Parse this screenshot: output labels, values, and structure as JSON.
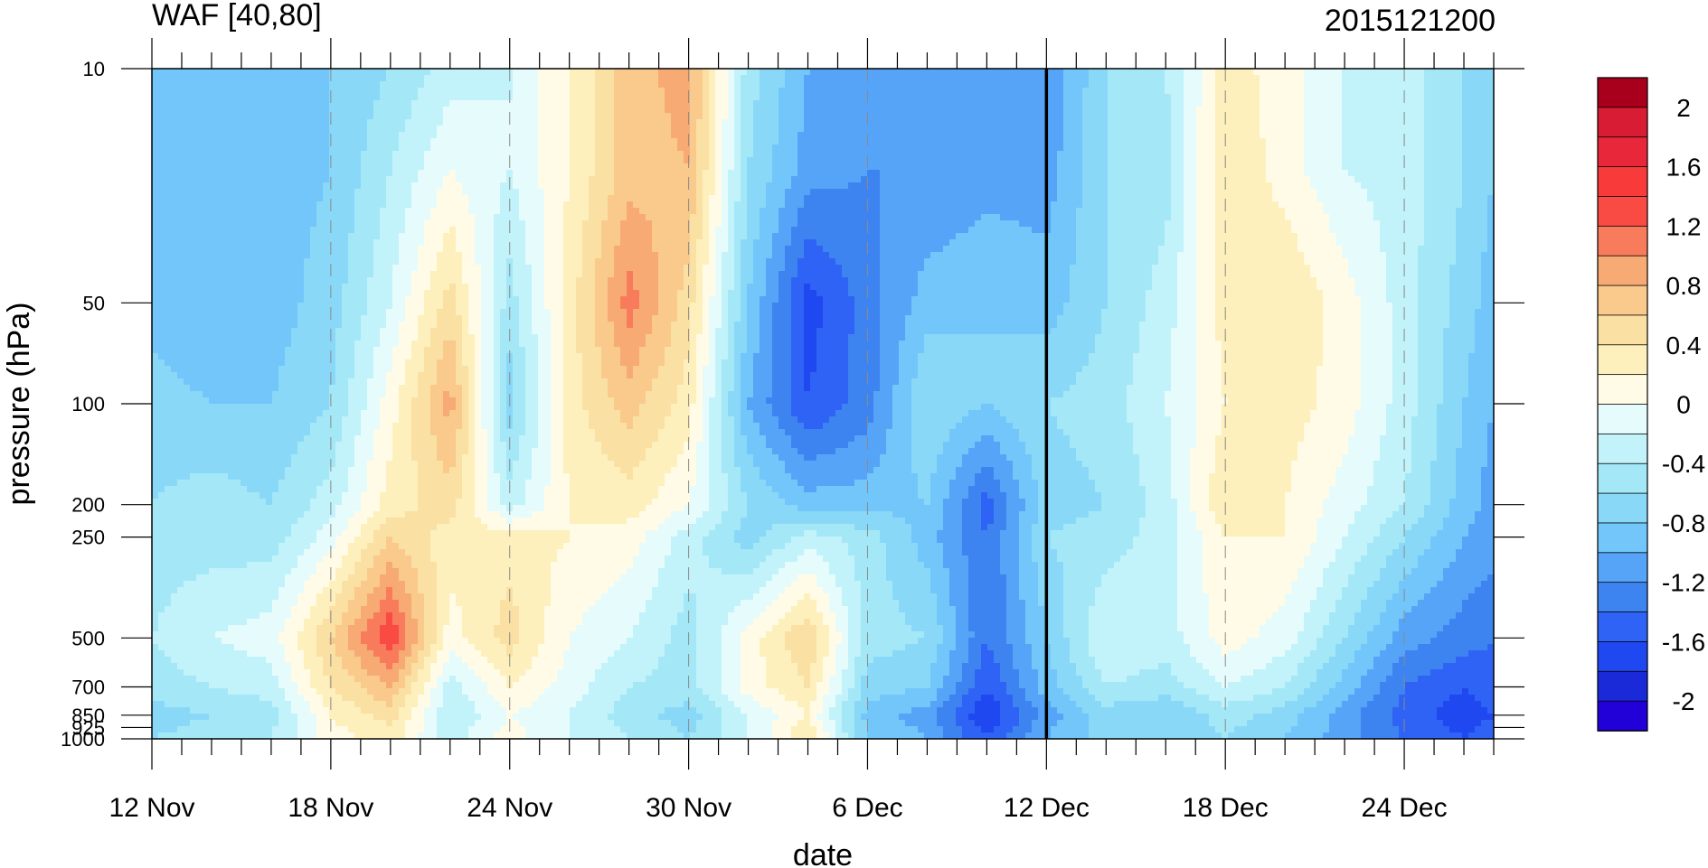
{
  "chart_data": {
    "type": "heatmap",
    "title": "WAF [40,80]",
    "subtitle": "2015121200",
    "xlabel": "date",
    "ylabel": "pressure (hPa)",
    "x_ticks": [
      {
        "date": "2015-11-12",
        "label": "12 Nov"
      },
      {
        "date": "2015-11-18",
        "label": "18 Nov"
      },
      {
        "date": "2015-11-24",
        "label": "24 Nov"
      },
      {
        "date": "2015-11-30",
        "label": "30 Nov"
      },
      {
        "date": "2015-12-06",
        "label": "6 Dec"
      },
      {
        "date": "2015-12-12",
        "label": "12 Dec"
      },
      {
        "date": "2015-12-18",
        "label": "18 Dec"
      },
      {
        "date": "2015-12-24",
        "label": "24 Dec"
      }
    ],
    "x_range": [
      "2015-11-12",
      "2015-12-27"
    ],
    "y_ticks": [
      {
        "value": 10,
        "label": "10"
      },
      {
        "value": 50,
        "label": "50"
      },
      {
        "value": 100,
        "label": "100"
      },
      {
        "value": 200,
        "label": "200"
      },
      {
        "value": 250,
        "label": "250"
      },
      {
        "value": 500,
        "label": "500"
      },
      {
        "value": 700,
        "label": "700"
      },
      {
        "value": 850,
        "label": "850"
      },
      {
        "value": 925,
        "label": "925"
      },
      {
        "value": 1000,
        "label": "1000"
      }
    ],
    "y_scale": "log",
    "y_inverted": true,
    "y_range": [
      10,
      1000
    ],
    "marker_line": "2015-12-12",
    "colorbar": {
      "levels": [
        -2.2,
        -2,
        -1.8,
        -1.6,
        -1.4,
        -1.2,
        -1,
        -0.8,
        -0.6,
        -0.4,
        -0.2,
        0,
        0.2,
        0.4,
        0.6,
        0.8,
        1,
        1.2,
        1.4,
        1.6,
        1.8,
        2,
        2.2
      ],
      "labels": [
        "2",
        "1.6",
        "1.2",
        "0.8",
        "0.4",
        "0",
        "-0.4",
        "-0.8",
        "-1.2",
        "-1.6",
        "-2"
      ],
      "colors": [
        "#2200d8",
        "#1a2ad8",
        "#1f48f0",
        "#2f63f5",
        "#3e84f0",
        "#56a4f8",
        "#72c6fa",
        "#8ad8f8",
        "#a4e8f8",
        "#c2f2fa",
        "#e6fcfc",
        "#fffbe6",
        "#fdf0bc",
        "#fbe0a4",
        "#f9ca8c",
        "#f7aa74",
        "#f87c5c",
        "#f94a44",
        "#f83a3a",
        "#e8283a",
        "#d81c34",
        "#a8001c"
      ]
    },
    "field": {
      "x": [
        "2015-11-12",
        "2015-11-14",
        "2015-11-16",
        "2015-11-18",
        "2015-11-20",
        "2015-11-22",
        "2015-11-24",
        "2015-11-26",
        "2015-11-28",
        "2015-11-30",
        "2015-12-02",
        "2015-12-04",
        "2015-12-06",
        "2015-12-08",
        "2015-12-10",
        "2015-12-12",
        "2015-12-14",
        "2015-12-16",
        "2015-12-18",
        "2015-12-20",
        "2015-12-22",
        "2015-12-24",
        "2015-12-26",
        "2015-12-27"
      ],
      "y": [
        10,
        20,
        50,
        100,
        200,
        250,
        500,
        700,
        850,
        1000
      ],
      "values": [
        [
          -0.8,
          -0.8,
          -0.8,
          -0.8,
          -0.6,
          -0.3,
          -0.2,
          0.2,
          0.7,
          0.9,
          -0.5,
          -1.0,
          -1.1,
          -1.2,
          -1.2,
          -1.2,
          -0.6,
          -0.4,
          0.3,
          0.1,
          -0.2,
          -0.3,
          -0.6,
          -0.7
        ],
        [
          -0.9,
          -1.0,
          -0.9,
          -0.8,
          -0.4,
          0.0,
          -0.2,
          0.2,
          0.7,
          0.8,
          -0.6,
          -1.1,
          -1.2,
          -1.2,
          -1.1,
          -1.1,
          -0.6,
          -0.5,
          0.4,
          0.1,
          -0.2,
          -0.3,
          -0.6,
          -0.8
        ],
        [
          -0.9,
          -1.0,
          -0.9,
          -0.7,
          -0.2,
          0.5,
          -0.5,
          0.3,
          1.1,
          0.5,
          -0.8,
          -1.7,
          -1.3,
          -0.9,
          -0.8,
          -0.9,
          -0.6,
          -0.3,
          0.3,
          0.4,
          0.1,
          -0.3,
          -0.7,
          -0.9
        ],
        [
          -0.7,
          -0.8,
          -0.8,
          -0.6,
          0.1,
          0.9,
          -0.7,
          0.3,
          0.7,
          0.3,
          -1.0,
          -1.6,
          -1.3,
          -0.6,
          -0.8,
          -0.6,
          -0.5,
          -0.2,
          0.2,
          0.3,
          0.1,
          -0.3,
          -0.8,
          -1.0
        ],
        [
          -0.6,
          -0.5,
          -0.6,
          -0.3,
          0.3,
          0.5,
          -0.3,
          0.2,
          0.3,
          0.0,
          -0.6,
          -0.9,
          -0.9,
          -0.8,
          -1.5,
          -0.7,
          -0.6,
          -0.3,
          0.4,
          0.2,
          -0.1,
          -0.4,
          -0.9,
          -1.1
        ],
        [
          -0.5,
          -0.5,
          -0.5,
          -0.1,
          0.6,
          0.3,
          0.3,
          0.2,
          0.1,
          -0.3,
          -0.7,
          -0.3,
          -0.5,
          -0.9,
          -1.4,
          -0.6,
          -0.5,
          -0.3,
          0.2,
          0.2,
          -0.2,
          -0.6,
          -1.0,
          -1.1
        ],
        [
          -0.4,
          -0.2,
          -0.1,
          0.6,
          1.4,
          0.1,
          0.5,
          0.0,
          -0.2,
          -0.5,
          0.1,
          0.6,
          -0.5,
          -0.6,
          -1.4,
          -0.8,
          -0.2,
          -0.3,
          0.1,
          -0.1,
          -0.6,
          -1.1,
          -1.3,
          -1.4
        ],
        [
          -0.5,
          -0.4,
          -0.3,
          0.4,
          0.8,
          -0.3,
          0.2,
          -0.1,
          -0.4,
          -0.5,
          0.1,
          0.4,
          -0.7,
          -0.8,
          -1.6,
          -0.9,
          -0.4,
          -0.5,
          -0.2,
          -0.4,
          -0.9,
          -1.4,
          -1.6,
          -1.5
        ],
        [
          -0.7,
          -0.6,
          -0.5,
          0.2,
          0.5,
          -0.4,
          0.0,
          -0.2,
          -0.5,
          -0.7,
          -0.2,
          0.2,
          -0.9,
          -1.1,
          -1.8,
          -1.1,
          -0.7,
          -0.8,
          -0.5,
          -0.7,
          -1.1,
          -1.5,
          -1.7,
          -1.6
        ],
        [
          -0.6,
          -0.5,
          -0.4,
          0.1,
          0.3,
          -0.3,
          0.1,
          -0.2,
          -0.4,
          -0.6,
          -0.2,
          0.4,
          -0.8,
          -1.0,
          -1.6,
          -1.0,
          -0.7,
          -0.8,
          -0.6,
          -0.8,
          -1.1,
          -1.4,
          -1.6,
          -1.5
        ]
      ]
    }
  }
}
